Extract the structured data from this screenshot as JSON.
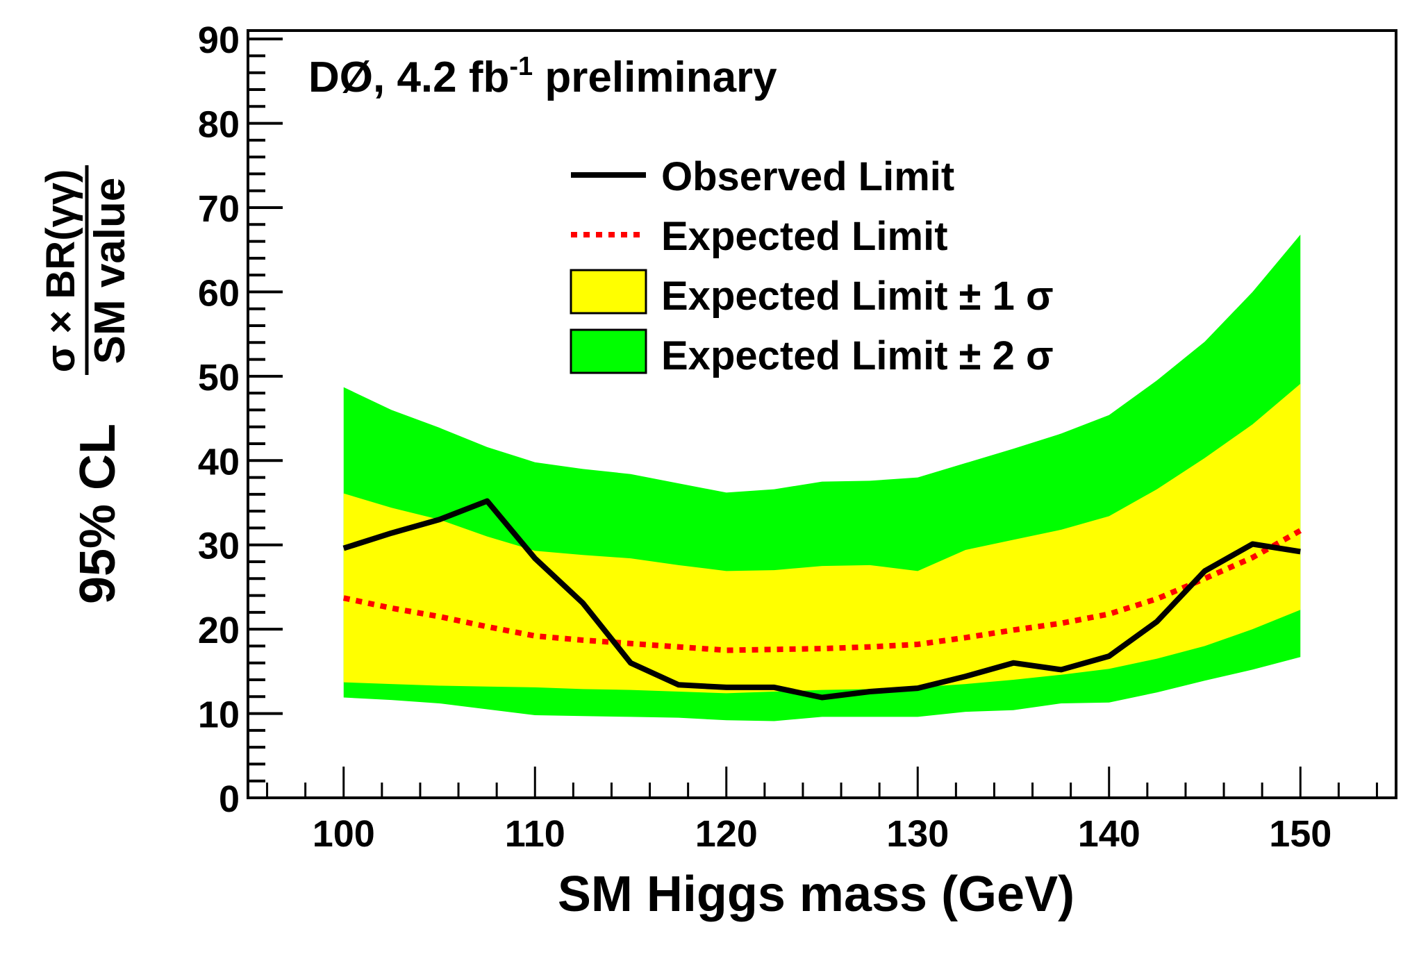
{
  "chart_data": {
    "type": "area",
    "title": "DØ, 4.2 fb-1 preliminary",
    "title_parts": {
      "main": "DØ, 4.2 fb",
      "superscript": "-1",
      "suffix": " preliminary"
    },
    "xlabel": "SM Higgs mass (GeV)",
    "ylabel_prefix": "95% CL",
    "ylabel_numerator": "σ × BR(γγ)",
    "ylabel_denominator": "SM value",
    "xlim": [
      95,
      155
    ],
    "ylim": [
      0,
      91
    ],
    "xticks": [
      100,
      110,
      120,
      130,
      140,
      150
    ],
    "yticks": [
      0,
      10,
      20,
      30,
      40,
      50,
      60,
      70,
      80,
      90
    ],
    "grid": false,
    "legend_position": "top-center",
    "legend": [
      {
        "label": "Observed Limit",
        "style": "solid-line",
        "color": "#000000"
      },
      {
        "label": "Expected Limit",
        "style": "dotted-line",
        "color": "#ff0000"
      },
      {
        "label": "Expected Limit ± 1 σ",
        "style": "box",
        "color": "#ffff00"
      },
      {
        "label": "Expected Limit ± 2 σ",
        "style": "box",
        "color": "#00ff00"
      }
    ],
    "x": [
      100,
      102.5,
      105,
      107.5,
      110,
      112.5,
      115,
      117.5,
      120,
      122.5,
      125,
      127.5,
      130,
      132.5,
      135,
      137.5,
      140,
      142.5,
      145,
      147.5,
      150
    ],
    "series": [
      {
        "name": "Observed Limit",
        "color": "#000000",
        "values": [
          29.6,
          31.4,
          33.0,
          35.2,
          28.4,
          23.1,
          16.0,
          13.4,
          13.1,
          13.1,
          11.9,
          12.6,
          13.0,
          14.4,
          16.0,
          15.2,
          16.8,
          20.9,
          26.9,
          30.1,
          29.2
        ]
      },
      {
        "name": "Expected Limit",
        "color": "#ff0000",
        "values": [
          23.7,
          22.5,
          21.5,
          20.3,
          19.2,
          18.7,
          18.3,
          17.9,
          17.5,
          17.6,
          17.7,
          17.9,
          18.2,
          19.0,
          19.9,
          20.7,
          21.8,
          23.6,
          26.0,
          28.5,
          31.7
        ]
      },
      {
        "name": "Expected Limit +1σ",
        "color": "#ffff00",
        "values": [
          36.1,
          34.4,
          33.0,
          31.0,
          29.3,
          28.8,
          28.4,
          27.6,
          26.9,
          27.0,
          27.5,
          27.6,
          26.9,
          29.4,
          30.6,
          31.8,
          33.4,
          36.6,
          40.3,
          44.3,
          49.1
        ]
      },
      {
        "name": "Expected Limit -1σ",
        "color": "#ffff00",
        "values": [
          13.7,
          13.5,
          13.3,
          13.2,
          13.1,
          12.9,
          12.8,
          12.6,
          12.4,
          12.6,
          12.8,
          12.9,
          13.1,
          13.5,
          14.0,
          14.6,
          15.3,
          16.5,
          18.0,
          20.0,
          22.3
        ]
      },
      {
        "name": "Expected Limit +2σ",
        "color": "#00ff00",
        "values": [
          48.7,
          46.0,
          43.9,
          41.6,
          39.8,
          39.0,
          38.4,
          37.3,
          36.2,
          36.6,
          37.5,
          37.6,
          38.0,
          39.7,
          41.4,
          43.2,
          45.4,
          49.5,
          54.1,
          60.0,
          66.8
        ]
      },
      {
        "name": "Expected Limit -2σ",
        "color": "#00ff00",
        "values": [
          11.9,
          11.6,
          11.2,
          10.5,
          9.8,
          9.7,
          9.6,
          9.5,
          9.2,
          9.1,
          9.6,
          9.6,
          9.6,
          10.2,
          10.4,
          11.2,
          11.3,
          12.5,
          13.9,
          15.2,
          16.7
        ]
      }
    ]
  }
}
